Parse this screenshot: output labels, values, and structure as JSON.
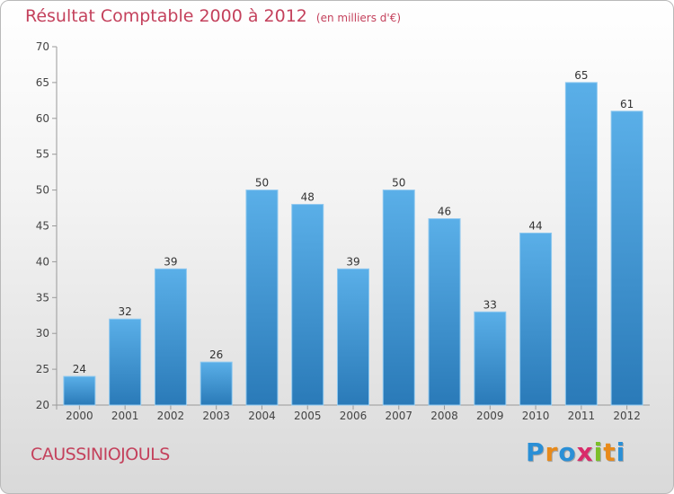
{
  "header": {
    "title": "Résultat Comptable 2000 à 2012",
    "unit": "(en milliers d'€)"
  },
  "footer": {
    "commune": "CAUSSINIOJOULS",
    "logo_letters": [
      "P",
      "r",
      "o",
      "x",
      "i",
      "t",
      "i"
    ],
    "logo_colors": [
      "#2a8fd6",
      "#e88a1a",
      "#2a8fd6",
      "#d92b6a",
      "#7cbf2a",
      "#e88a1a",
      "#2a8fd6"
    ]
  },
  "chart_data": {
    "type": "bar",
    "title": "Résultat Comptable 2000 à 2012",
    "xlabel": "",
    "ylabel": "",
    "categories": [
      "2000",
      "2001",
      "2002",
      "2003",
      "2004",
      "2005",
      "2006",
      "2007",
      "2008",
      "2009",
      "2010",
      "2011",
      "2012"
    ],
    "values": [
      24,
      32,
      39,
      26,
      50,
      48,
      39,
      50,
      46,
      33,
      44,
      65,
      61
    ],
    "ylim": [
      20,
      70
    ],
    "yticks": [
      20,
      25,
      30,
      35,
      40,
      45,
      50,
      55,
      60,
      65,
      70
    ],
    "grid": false,
    "bar_color_top": "#5aafe8",
    "bar_color_bottom": "#2a7ab8"
  }
}
